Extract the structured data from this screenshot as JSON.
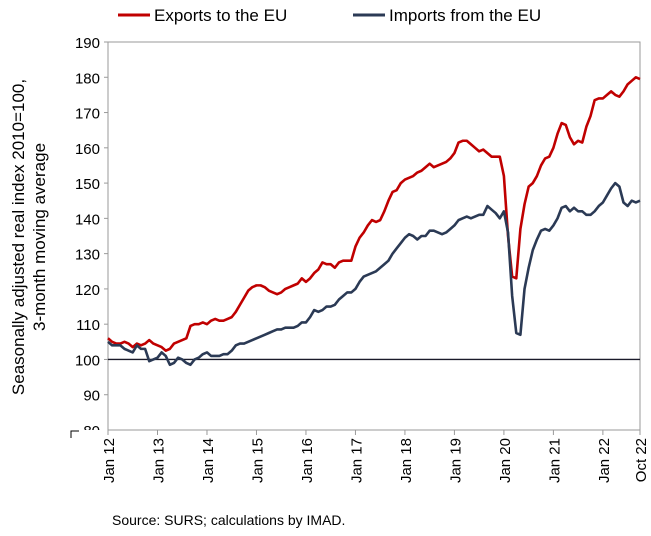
{
  "chart_data": {
    "type": "line",
    "ylabel_lines": [
      "Seasonally adjusted real index 2010=100,",
      "3-month moving average"
    ],
    "ylim": [
      80,
      190
    ],
    "yticks": [
      90,
      100,
      110,
      120,
      130,
      140,
      150,
      160,
      170,
      180,
      190
    ],
    "xticks": [
      {
        "label": "Jan 12",
        "date": "2012-01"
      },
      {
        "label": "Jan 13",
        "date": "2013-01"
      },
      {
        "label": "Jan 14",
        "date": "2014-01"
      },
      {
        "label": "Jan 15",
        "date": "2015-01"
      },
      {
        "label": "Jan 16",
        "date": "2016-01"
      },
      {
        "label": "Jan 17",
        "date": "2017-01"
      },
      {
        "label": "Jan 18",
        "date": "2018-01"
      },
      {
        "label": "Jan 19",
        "date": "2019-01"
      },
      {
        "label": "Jan 20",
        "date": "2020-01"
      },
      {
        "label": "Jan 21",
        "date": "2021-01"
      },
      {
        "label": "Jan 22",
        "date": "2022-01"
      },
      {
        "label": "Oct 22",
        "date": "2022-10"
      }
    ],
    "reference_line": 100,
    "legend_position": "top",
    "x": [
      "2012-01",
      "2012-02",
      "2012-03",
      "2012-04",
      "2012-05",
      "2012-06",
      "2012-07",
      "2012-08",
      "2012-09",
      "2012-10",
      "2012-11",
      "2012-12",
      "2013-01",
      "2013-02",
      "2013-03",
      "2013-04",
      "2013-05",
      "2013-06",
      "2013-07",
      "2013-08",
      "2013-09",
      "2013-10",
      "2013-11",
      "2013-12",
      "2014-01",
      "2014-02",
      "2014-03",
      "2014-04",
      "2014-05",
      "2014-06",
      "2014-07",
      "2014-08",
      "2014-09",
      "2014-10",
      "2014-11",
      "2014-12",
      "2015-01",
      "2015-02",
      "2015-03",
      "2015-04",
      "2015-05",
      "2015-06",
      "2015-07",
      "2015-08",
      "2015-09",
      "2015-10",
      "2015-11",
      "2015-12",
      "2016-01",
      "2016-02",
      "2016-03",
      "2016-04",
      "2016-05",
      "2016-06",
      "2016-07",
      "2016-08",
      "2016-09",
      "2016-10",
      "2016-11",
      "2016-12",
      "2017-01",
      "2017-02",
      "2017-03",
      "2017-04",
      "2017-05",
      "2017-06",
      "2017-07",
      "2017-08",
      "2017-09",
      "2017-10",
      "2017-11",
      "2017-12",
      "2018-01",
      "2018-02",
      "2018-03",
      "2018-04",
      "2018-05",
      "2018-06",
      "2018-07",
      "2018-08",
      "2018-09",
      "2018-10",
      "2018-11",
      "2018-12",
      "2019-01",
      "2019-02",
      "2019-03",
      "2019-04",
      "2019-05",
      "2019-06",
      "2019-07",
      "2019-08",
      "2019-09",
      "2019-10",
      "2019-11",
      "2019-12",
      "2020-01",
      "2020-02",
      "2020-03",
      "2020-04",
      "2020-05",
      "2020-06",
      "2020-07",
      "2020-08",
      "2020-09",
      "2020-10",
      "2020-11",
      "2020-12",
      "2021-01",
      "2021-02",
      "2021-03",
      "2021-04",
      "2021-05",
      "2021-06",
      "2021-07",
      "2021-08",
      "2021-09",
      "2021-10",
      "2021-11",
      "2021-12",
      "2022-01",
      "2022-02",
      "2022-03",
      "2022-04",
      "2022-05",
      "2022-06",
      "2022-07",
      "2022-08",
      "2022-09",
      "2022-10"
    ],
    "series": [
      {
        "name": "Exports to the EU",
        "color": "#c00000",
        "values": [
          106,
          105,
          104.5,
          104.5,
          105,
          104.5,
          103.5,
          104.5,
          104,
          104.5,
          105.5,
          104.5,
          104,
          103.5,
          102.5,
          103,
          104.5,
          105,
          105.5,
          106,
          109.5,
          110,
          110,
          110.5,
          110,
          111,
          111.5,
          111,
          111,
          111.5,
          112,
          113.5,
          115.5,
          117.5,
          119.5,
          120.5,
          121,
          121,
          120.5,
          119.5,
          119,
          118.5,
          119,
          120,
          120.5,
          121,
          121.5,
          123,
          122,
          123,
          124.5,
          125.5,
          127.5,
          127,
          127,
          126,
          127.5,
          128,
          128,
          128,
          132,
          134.5,
          136,
          138,
          139.5,
          139,
          139.5,
          142,
          145,
          147.5,
          148,
          150,
          151,
          151.5,
          152,
          153,
          153.5,
          154.5,
          155.5,
          154.5,
          155,
          155.5,
          156,
          157,
          158.5,
          161.5,
          162,
          162,
          161,
          160,
          159,
          159.5,
          158.5,
          157.5,
          157.5,
          157.5,
          152,
          135,
          123.5,
          123,
          137,
          144,
          149,
          150,
          152,
          155,
          157,
          157.5,
          160,
          164,
          167,
          166.5,
          163,
          161,
          162,
          161.5,
          166,
          169,
          173.5,
          174,
          174,
          175,
          176,
          175,
          174.5,
          176,
          178,
          179,
          180,
          179.5
        ]
      },
      {
        "name": "Imports from the EU",
        "color": "#2b3a55",
        "values": [
          105,
          104,
          104,
          104,
          103,
          102.5,
          102,
          104,
          103,
          103,
          99.5,
          100,
          100.5,
          102,
          101,
          98.5,
          99,
          100.5,
          100,
          99,
          98.5,
          100,
          100.5,
          101.5,
          102,
          101,
          101,
          101,
          101.5,
          101.5,
          102.5,
          104,
          104.5,
          104.5,
          105,
          105.5,
          106,
          106.5,
          107,
          107.5,
          108,
          108.5,
          108.5,
          109,
          109,
          109,
          109.5,
          110.5,
          110.5,
          112,
          114,
          113.5,
          114,
          115,
          115,
          115.5,
          117,
          118,
          119,
          119,
          120,
          122,
          123.5,
          124,
          124.5,
          125,
          126,
          127,
          128,
          130,
          131.5,
          133,
          134.5,
          135.5,
          135,
          134,
          135,
          135,
          136.5,
          136.5,
          136,
          135.5,
          136,
          137,
          138,
          139.5,
          140,
          140.5,
          140,
          140.5,
          141,
          141,
          143.5,
          142.5,
          141.5,
          140,
          142,
          136,
          118,
          107.5,
          107,
          120,
          126,
          131,
          134,
          136.5,
          137,
          136.5,
          138,
          140,
          143,
          143.5,
          142,
          143,
          142,
          142,
          141,
          141,
          142,
          143.5,
          144.5,
          146.5,
          148.5,
          150,
          149,
          144.5,
          143.5,
          145,
          144.5,
          145
        ]
      }
    ]
  },
  "source_text": "Source: SURS; calculations by IMAD."
}
